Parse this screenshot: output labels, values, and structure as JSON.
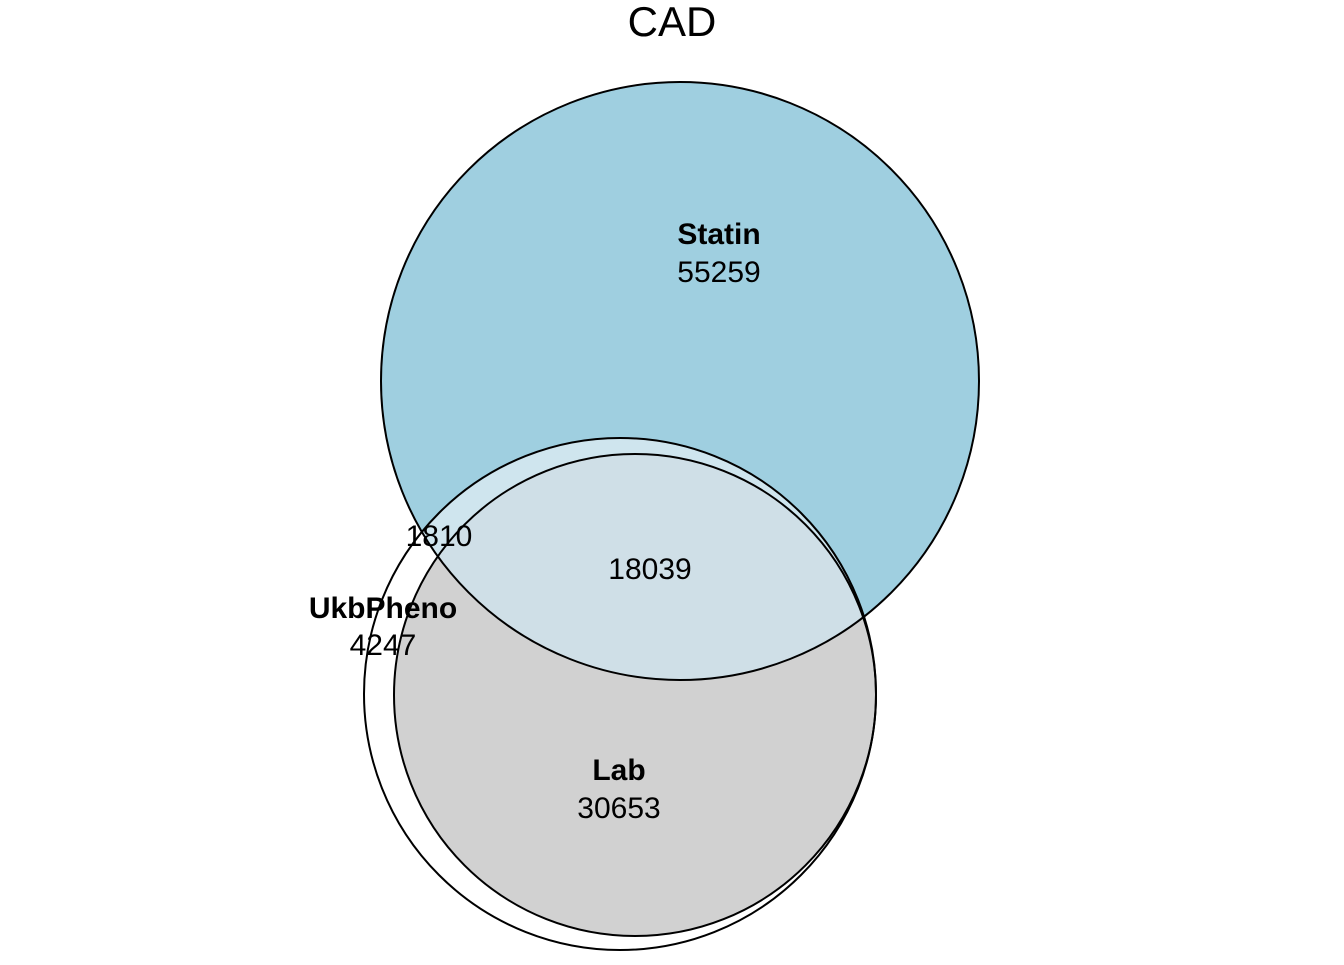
{
  "title": "CAD",
  "colors": {
    "statin_fill": "#9fcfe0",
    "lab_fill": "#d1d1d1",
    "overlap_fill": "#cfdfe7",
    "ukbpheno_fill": "#ffffff",
    "stroke": "#000000"
  },
  "sets": {
    "statin": {
      "label": "Statin",
      "count": "55259"
    },
    "lab": {
      "label": "Lab",
      "count": "30653"
    },
    "ukbpheno": {
      "label": "UkbPheno",
      "count": "4247"
    }
  },
  "intersections": {
    "statin_lab": "18039",
    "statin_ukbpheno": "1810"
  }
}
